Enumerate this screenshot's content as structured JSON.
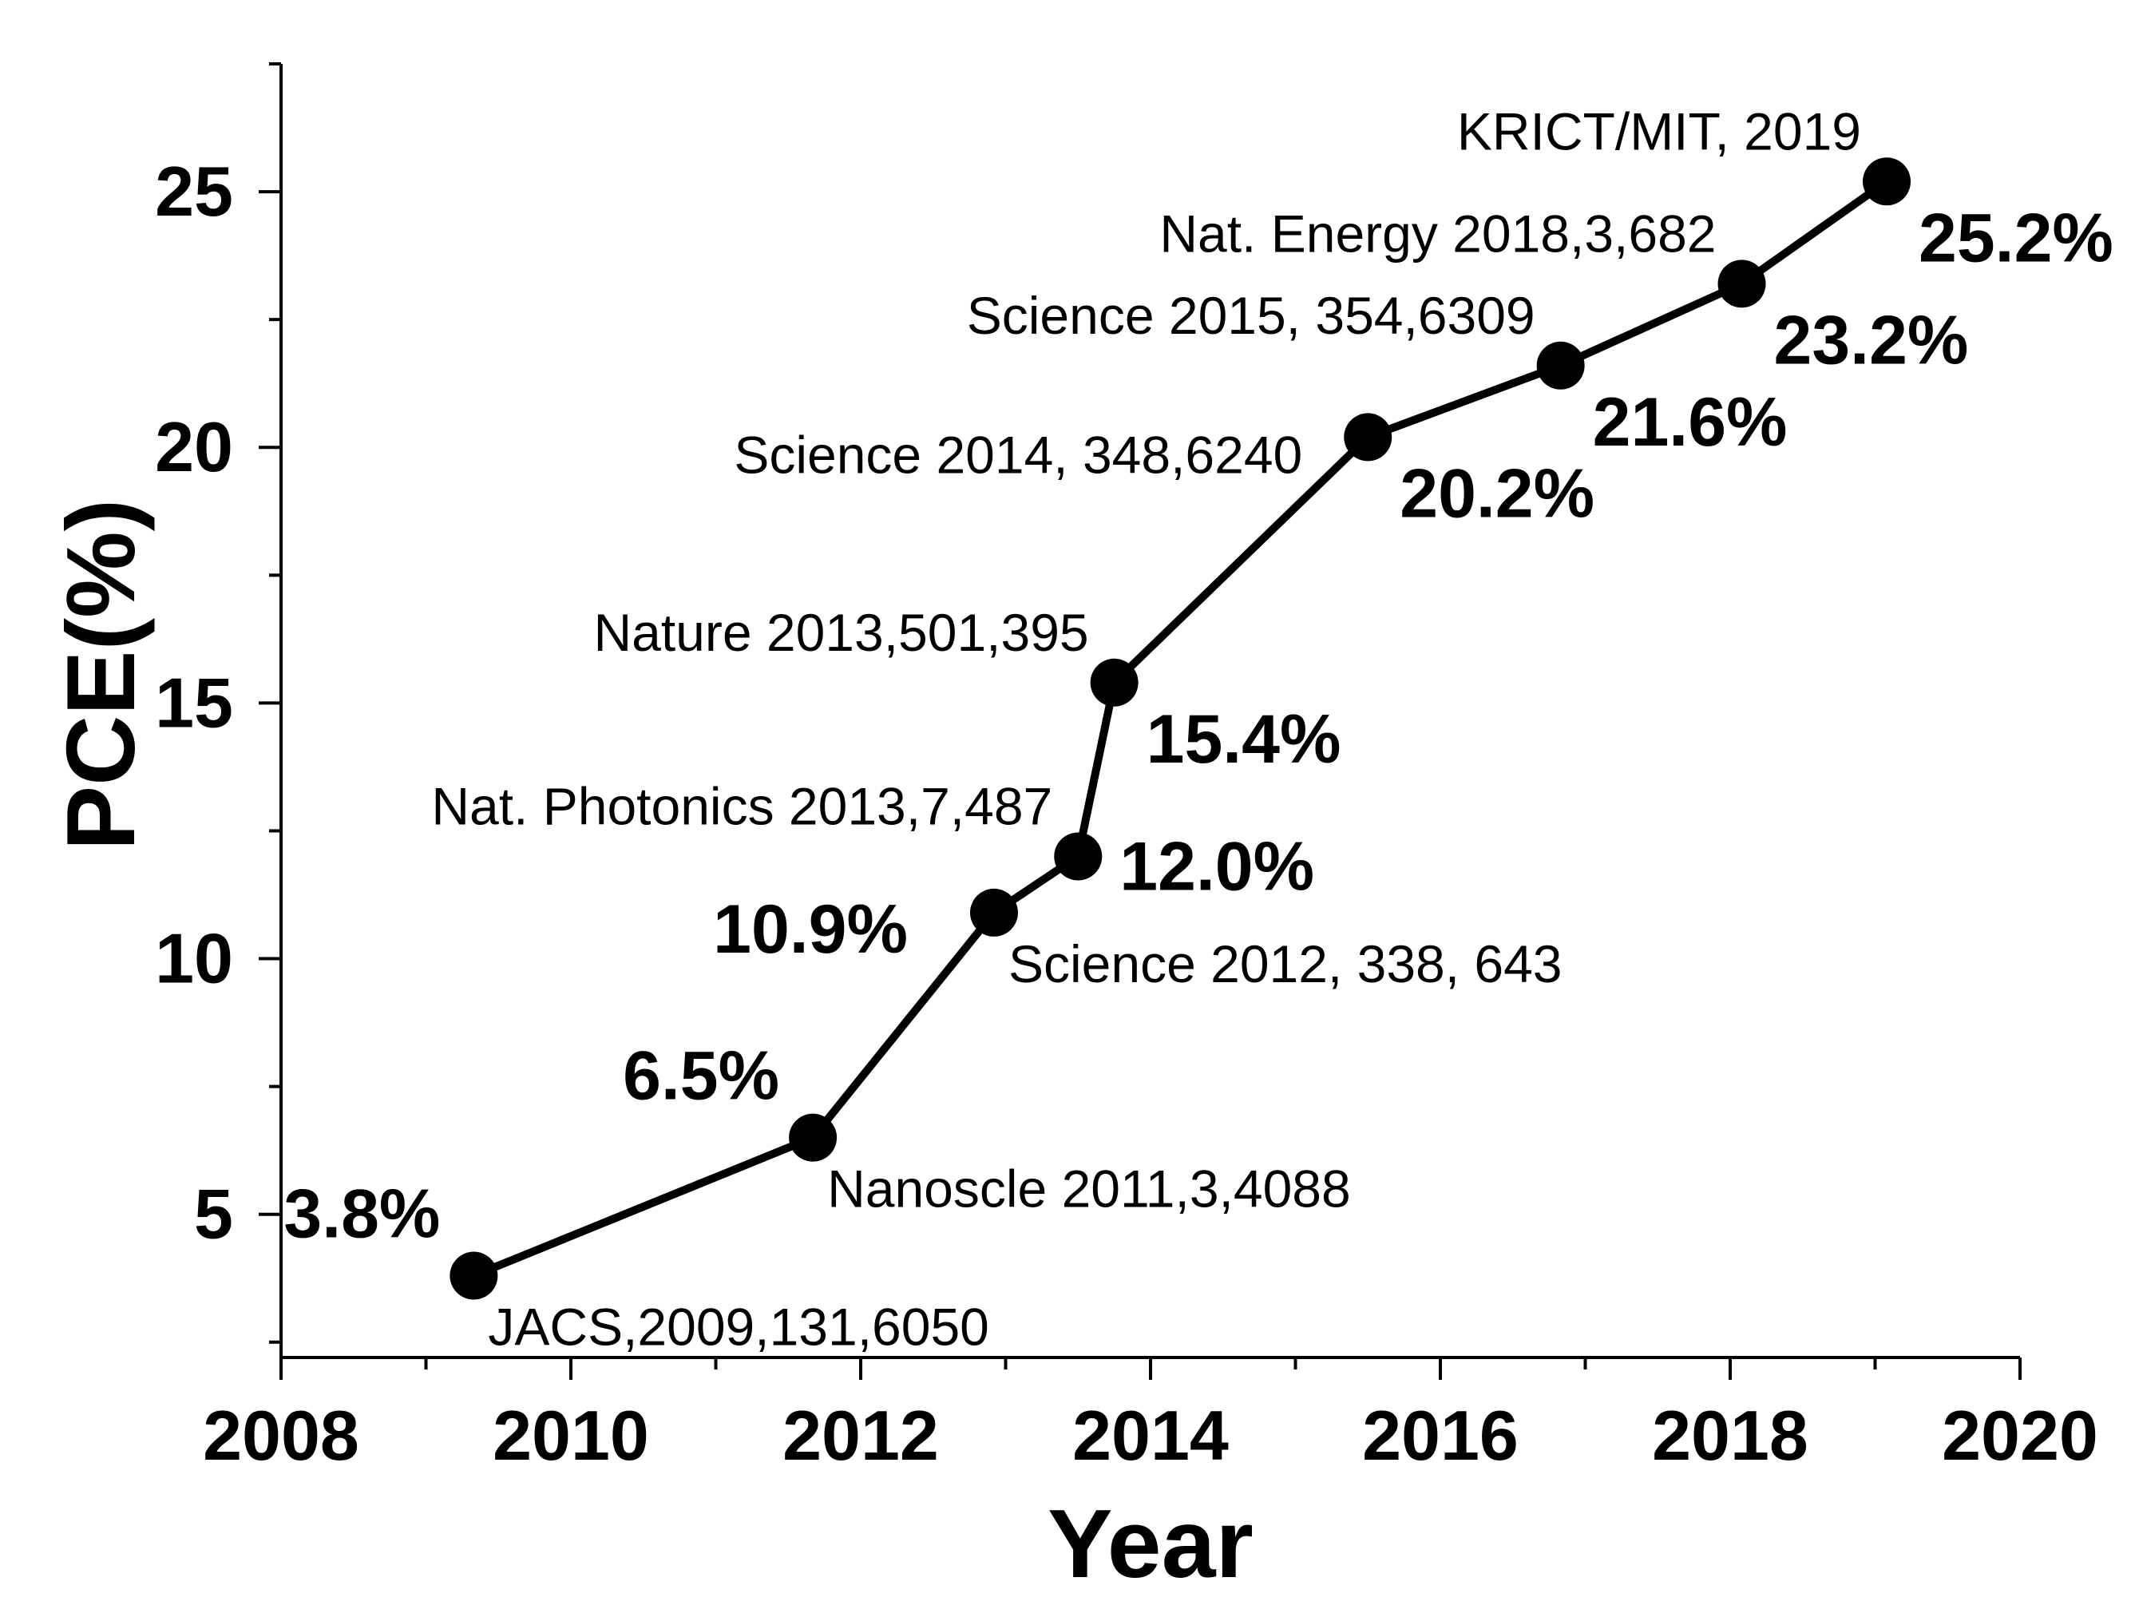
{
  "chart_data": {
    "type": "line",
    "title": "",
    "xlabel": "Year",
    "ylabel": "PCE(%)",
    "xlim": [
      2008,
      2020
    ],
    "ylim": [
      2.2,
      27.5
    ],
    "x_ticks": [
      2008,
      2010,
      2012,
      2014,
      2016,
      2018,
      2020
    ],
    "x_tick_labels": [
      "2008",
      "2010",
      "2012",
      "2014",
      "2016",
      "2018",
      "2020"
    ],
    "y_ticks": [
      5,
      10,
      15,
      20,
      25
    ],
    "y_tick_labels": [
      "5",
      "10",
      "15",
      "20",
      "25"
    ],
    "grid": false,
    "legend": "none",
    "series": [
      {
        "name": "PCE",
        "color": "#000000",
        "points": [
          {
            "x": 2009.33,
            "y": 3.8,
            "value_label": "3.8%",
            "reference": "JACS,2009,131,6050",
            "value_pos": "upper-left",
            "ref_pos": "lower-right"
          },
          {
            "x": 2011.67,
            "y": 6.5,
            "value_label": "6.5%",
            "reference": "Nanoscle 2011,3,4088",
            "value_pos": "upper-left",
            "ref_pos": "lower-right"
          },
          {
            "x": 2012.92,
            "y": 10.9,
            "value_label": "10.9%",
            "reference": "Science 2012, 338, 643",
            "value_pos": "left",
            "ref_pos": "lower-right"
          },
          {
            "x": 2013.5,
            "y": 12.0,
            "value_label": "12.0%",
            "reference": "Nat. Photonics 2013,7,487",
            "value_pos": "right",
            "ref_pos": "upper-left"
          },
          {
            "x": 2013.75,
            "y": 15.4,
            "value_label": "15.4%",
            "reference": "Nature 2013,501,395",
            "value_pos": "lower-right",
            "ref_pos": "upper-left"
          },
          {
            "x": 2015.5,
            "y": 20.2,
            "value_label": "20.2%",
            "reference": "Science 2014, 348,6240",
            "value_pos": "lower-right",
            "ref_pos": "left"
          },
          {
            "x": 2016.83,
            "y": 21.6,
            "value_label": "21.6%",
            "reference": "Science 2015, 354,6309",
            "value_pos": "lower-right",
            "ref_pos": "upper-left"
          },
          {
            "x": 2018.08,
            "y": 23.2,
            "value_label": "23.2%",
            "reference": "Nat. Energy 2018,3,682",
            "value_pos": "lower-right",
            "ref_pos": "upper-left"
          },
          {
            "x": 2019.08,
            "y": 25.2,
            "value_label": "25.2%",
            "reference": "KRICT/MIT, 2019",
            "value_pos": "lower-right",
            "ref_pos": "upper-left"
          }
        ]
      }
    ]
  }
}
